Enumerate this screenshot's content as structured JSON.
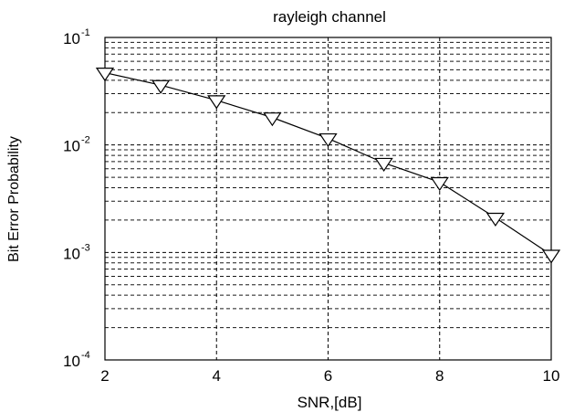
{
  "chart_data": {
    "type": "line",
    "title": "rayleigh channel",
    "xlabel": "SNR,[dB]",
    "ylabel": "Bit Error Probability",
    "xlim": [
      2,
      10
    ],
    "ylim": [
      0.0001,
      0.1
    ],
    "yscale": "log",
    "grid": true,
    "xticks": [
      "2",
      "4",
      "6",
      "8",
      "10"
    ],
    "yticks": [
      {
        "value": 0.1,
        "base": "10",
        "exp": "-1"
      },
      {
        "value": 0.01,
        "base": "10",
        "exp": "-2"
      },
      {
        "value": 0.001,
        "base": "10",
        "exp": "-3"
      },
      {
        "value": 0.0001,
        "base": "10",
        "exp": "-4"
      }
    ],
    "series": [
      {
        "marker": "down-triangle",
        "color": "#000000",
        "x": [
          2,
          3,
          4,
          5,
          6,
          7,
          8,
          9,
          10
        ],
        "y": [
          0.047,
          0.036,
          0.026,
          0.018,
          0.0115,
          0.0068,
          0.0045,
          0.0021,
          0.00095
        ]
      }
    ]
  }
}
